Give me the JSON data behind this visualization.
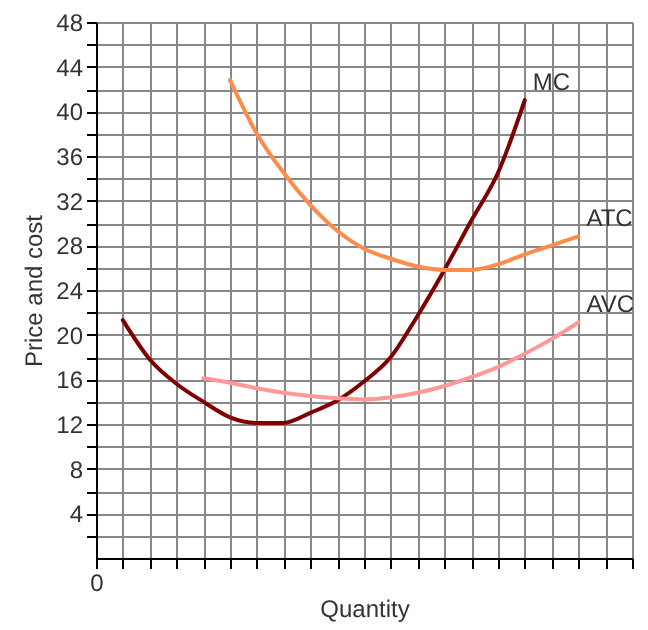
{
  "chart_data": {
    "type": "line",
    "xlabel": "Quantity",
    "ylabel": "Price and cost",
    "ylim": [
      0,
      48
    ],
    "categories": [
      "0",
      null,
      null,
      null,
      null,
      null,
      null,
      null,
      null,
      null,
      null,
      null,
      null,
      null,
      null,
      null,
      null,
      null,
      null,
      null,
      null
    ],
    "yticks": [
      {
        "value": 2,
        "label": null
      },
      4,
      {
        "value": 6,
        "label": null
      },
      8,
      {
        "value": 10,
        "label": null
      },
      12,
      {
        "value": 14,
        "label": null
      },
      16,
      {
        "value": 18,
        "label": null
      },
      20,
      {
        "value": 22,
        "label": null
      },
      24,
      {
        "value": 26,
        "label": null
      },
      28,
      {
        "value": 30,
        "label": null
      },
      32,
      {
        "value": 34,
        "label": null
      },
      36,
      {
        "value": 38,
        "label": null
      },
      40,
      {
        "value": 42,
        "label": null
      },
      44,
      {
        "value": 46,
        "label": null
      },
      48
    ],
    "grid": true,
    "series": [
      {
        "name": "MC",
        "color": "#800000",
        "values": [
          null,
          21.3,
          17.8,
          15.6,
          14.0,
          12.6,
          12.1,
          12.1,
          13.0,
          14.1,
          15.8,
          18,
          21.7,
          25.8,
          30.2,
          34.5,
          41,
          null,
          null,
          null,
          null
        ]
      },
      {
        "name": "ATC",
        "color": "#ff8c4a",
        "values": [
          null,
          null,
          null,
          null,
          null,
          42.8,
          38,
          34.5,
          31.6,
          29.3,
          27.7,
          26.8,
          26.1,
          25.8,
          25.8,
          26.3,
          27.2,
          28,
          28.8,
          null,
          null
        ]
      },
      {
        "name": "AVC",
        "color": "#ff9999",
        "values": [
          null,
          null,
          null,
          null,
          16.1,
          15.7,
          15.2,
          14.8,
          14.5,
          14.3,
          14.2,
          14.4,
          14.8,
          15.4,
          16.2,
          17.1,
          18.3,
          19.6,
          21.1,
          null,
          null
        ]
      }
    ]
  }
}
